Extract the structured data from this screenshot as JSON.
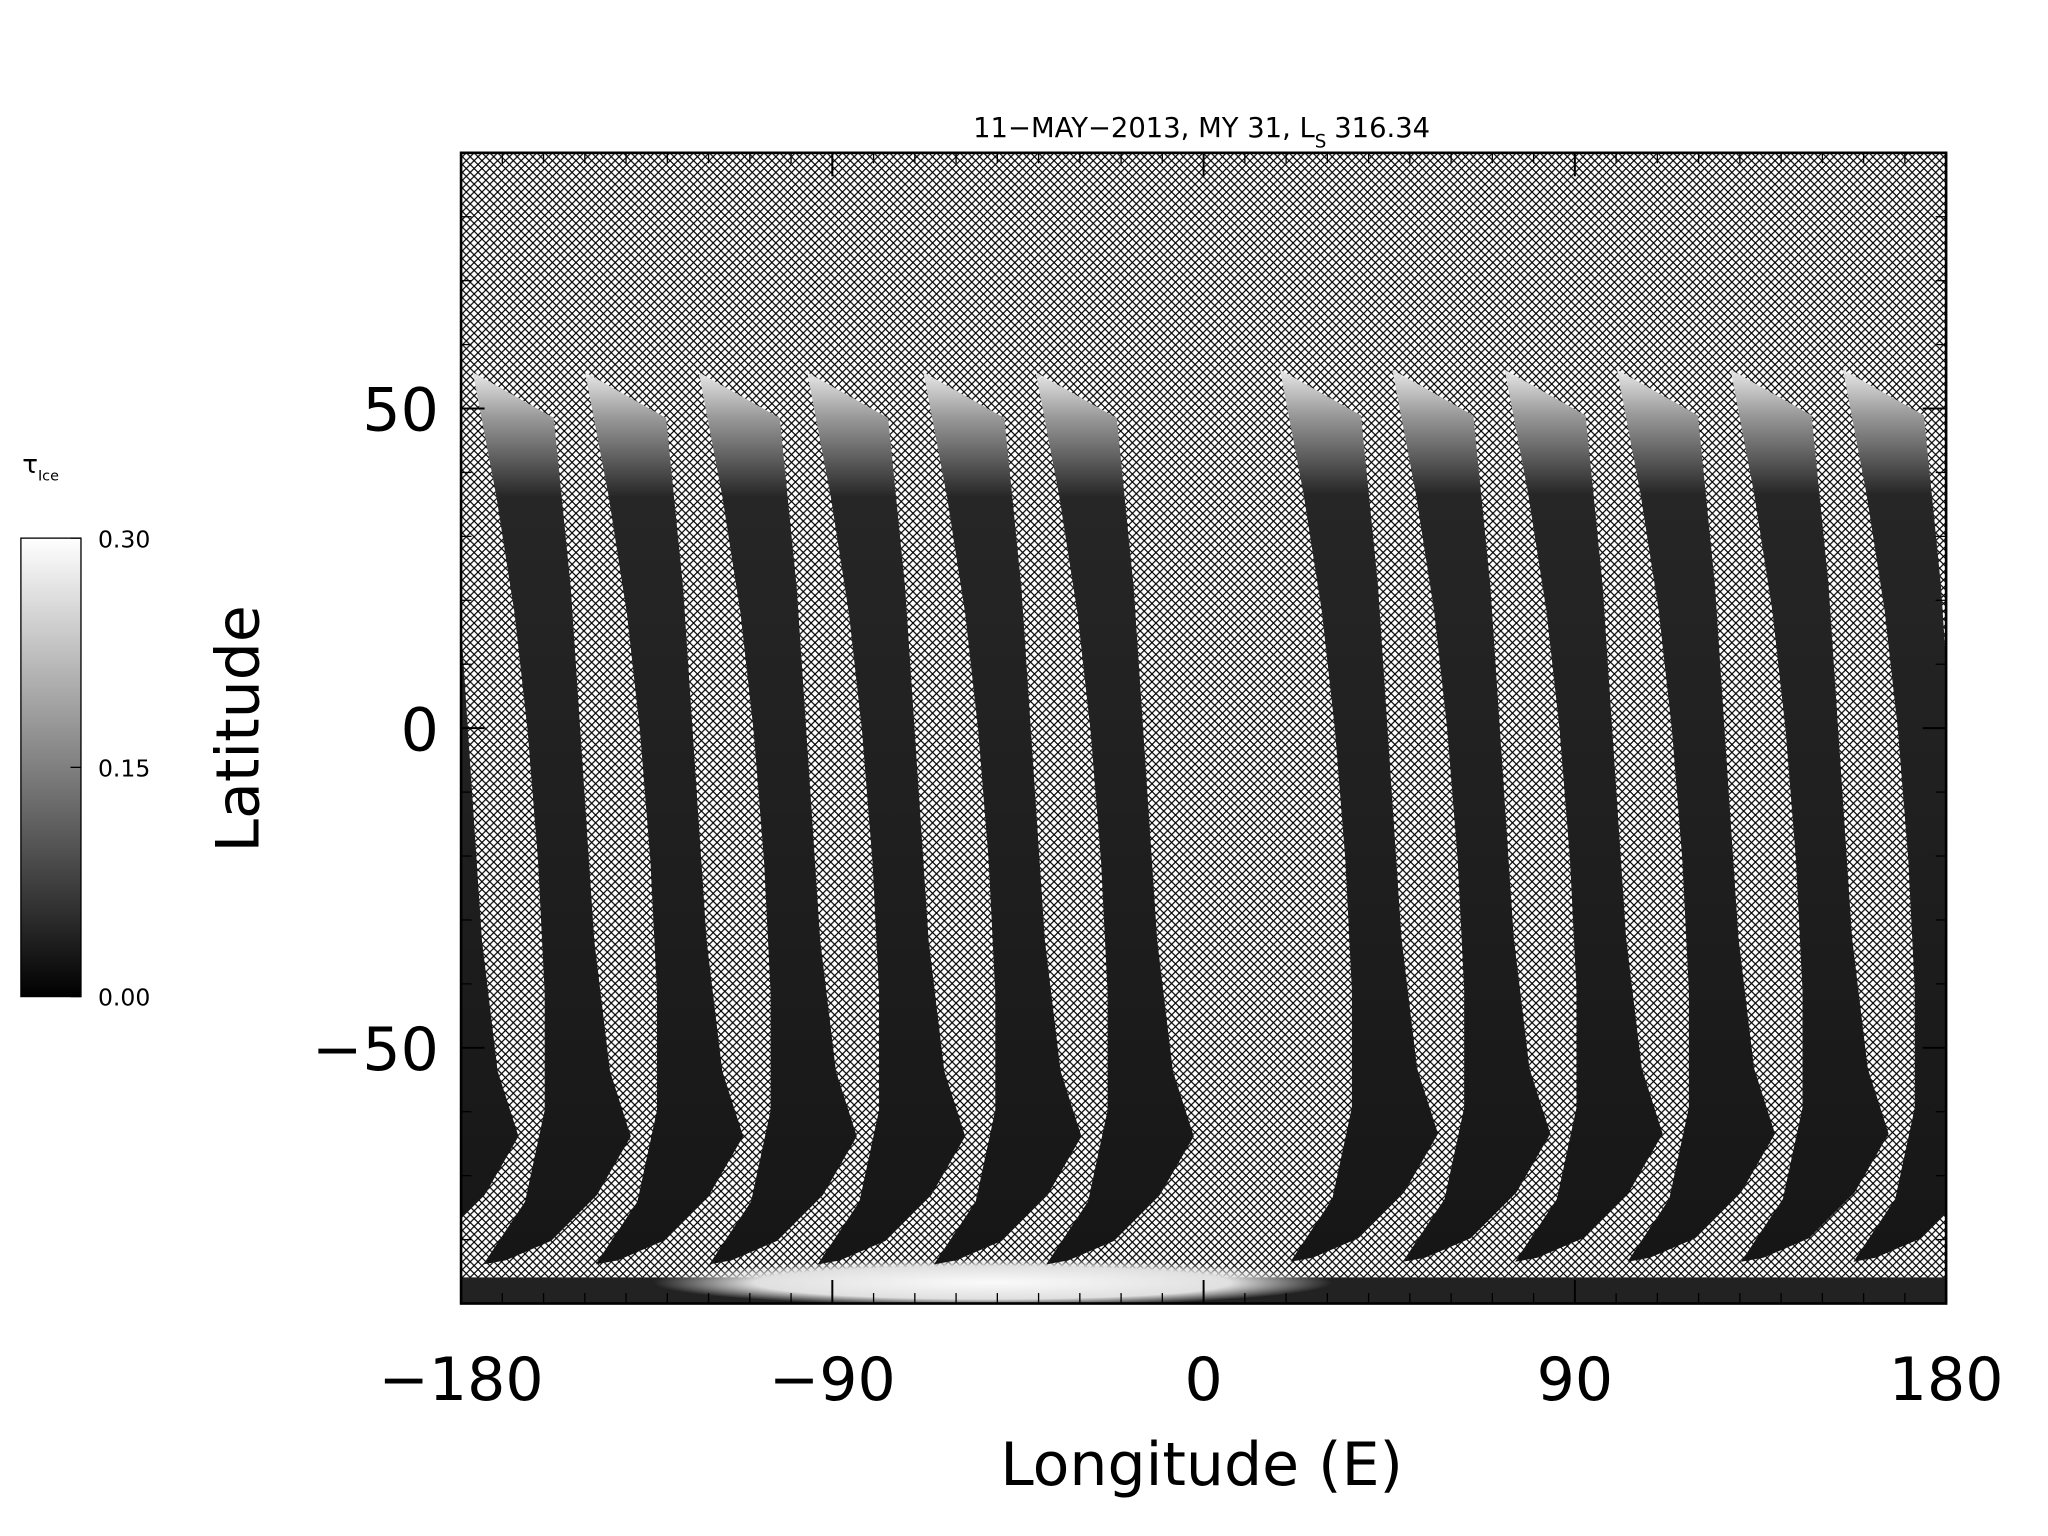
{
  "chart_data": {
    "type": "map",
    "title": {
      "text": "11−MAY−2013, MY 31,  L",
      "subscript": "S",
      "value": "316.34"
    },
    "x_label": "Longitude (E)",
    "y_label": "Latitude",
    "xlim": [
      -180,
      180
    ],
    "xticks": [
      {
        "value": -180,
        "label": "−180"
      },
      {
        "value": -90,
        "label": "−90"
      },
      0,
      90,
      180
    ],
    "ylim": [
      -90,
      90
    ],
    "yticks": [
      {
        "value": -50,
        "label": "−50"
      },
      0,
      50
    ],
    "colorbar": {
      "label": "τ",
      "label_subscript": "Ice",
      "lim": [
        0,
        0.3
      ],
      "ticks": [
        {
          "value": 0,
          "label": "0.00"
        },
        {
          "value": 0.15,
          "label": "0.15"
        },
        {
          "value": 0.3,
          "label": "0.30"
        }
      ]
    }
  }
}
